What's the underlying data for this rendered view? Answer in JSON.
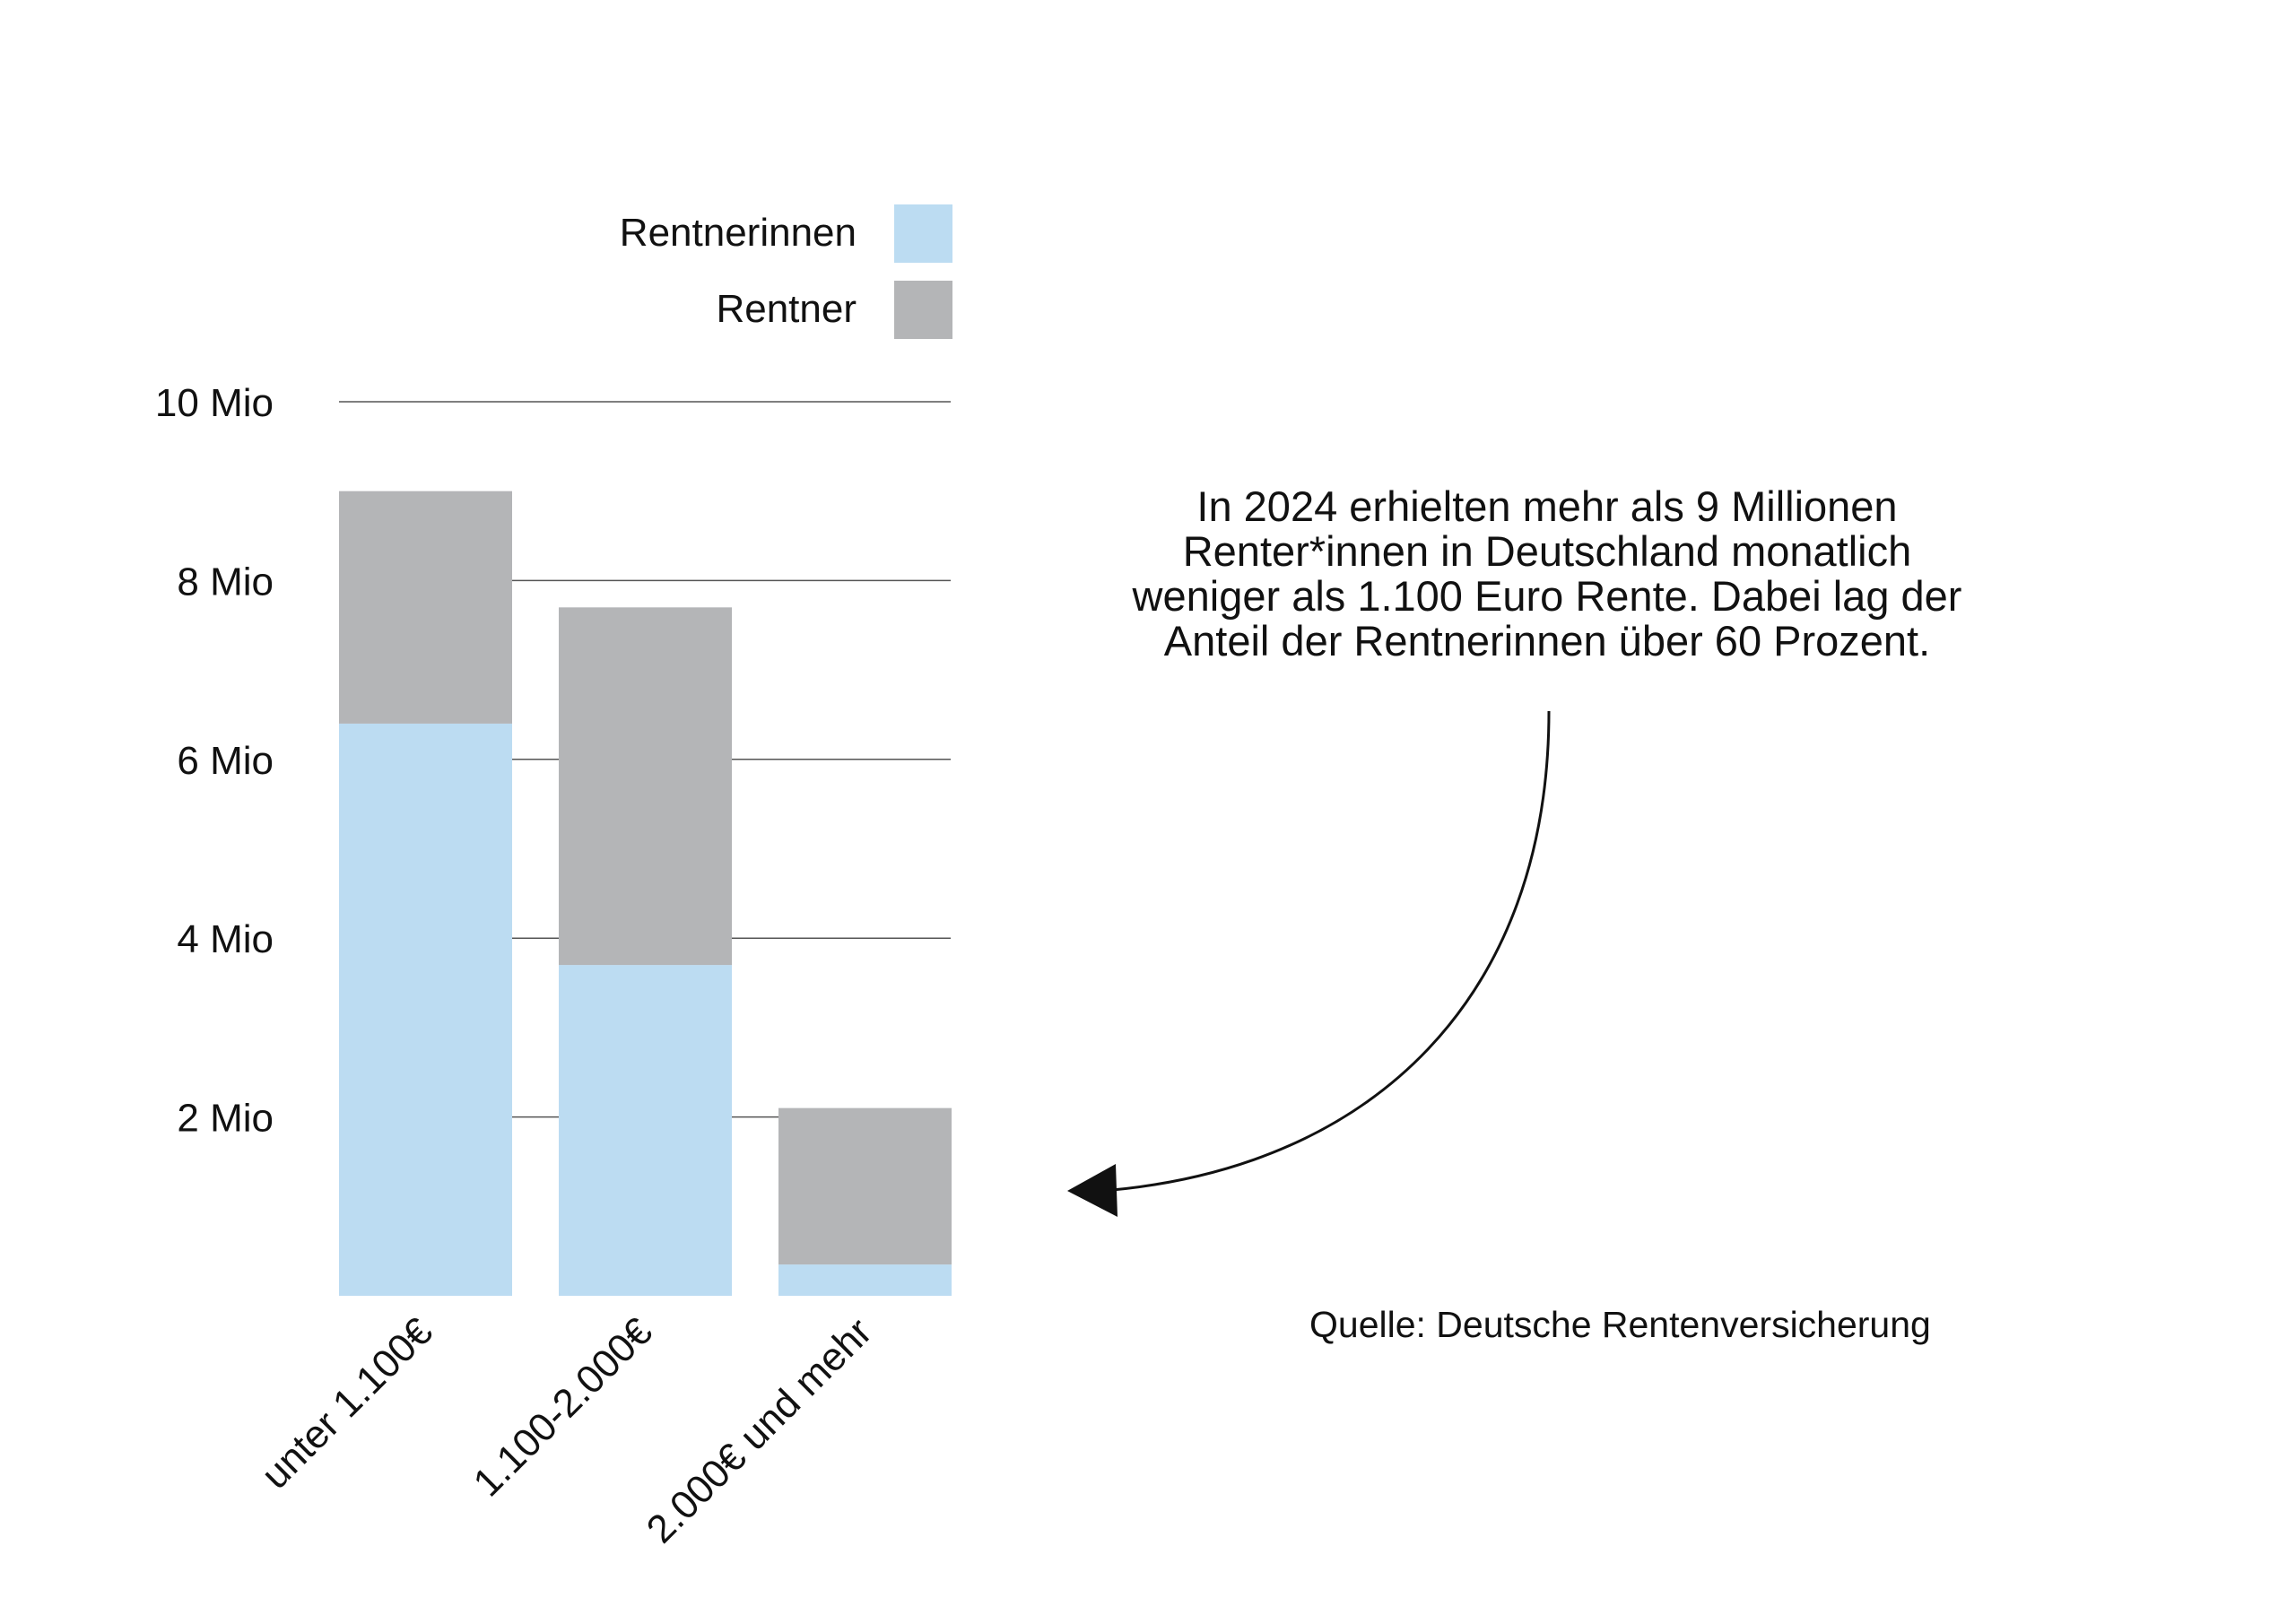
{
  "chart_data": {
    "type": "bar",
    "stacked": true,
    "categories": [
      "unter 1.100€",
      "1.100-2.000€",
      "2.000€ und mehr"
    ],
    "series": [
      {
        "name": "Rentnerinnen",
        "color": "#bcdcf2",
        "values": [
          6.4,
          3.7,
          0.35
        ]
      },
      {
        "name": "Rentner",
        "color": "#b4b5b7",
        "values": [
          2.6,
          4.0,
          1.75
        ]
      }
    ],
    "ylim": [
      0,
      10
    ],
    "yticks": [
      2,
      4,
      6,
      8,
      10
    ],
    "ytick_labels": [
      "2 Mio",
      "4 Mio",
      "6 Mio",
      "8 Mio",
      "10 Mio"
    ],
    "grid": true,
    "legend_position": "top"
  },
  "annotation": {
    "lines": [
      "In 2024 erhielten mehr als 9 Millionen",
      "Renter*innen in Deutschland monatlich",
      "weniger als 1.100 Euro Rente. Dabei lag der",
      "Anteil der Rentnerinnen über 60 Prozent."
    ]
  },
  "source": "Quelle: Deutsche Rentenversicherung"
}
